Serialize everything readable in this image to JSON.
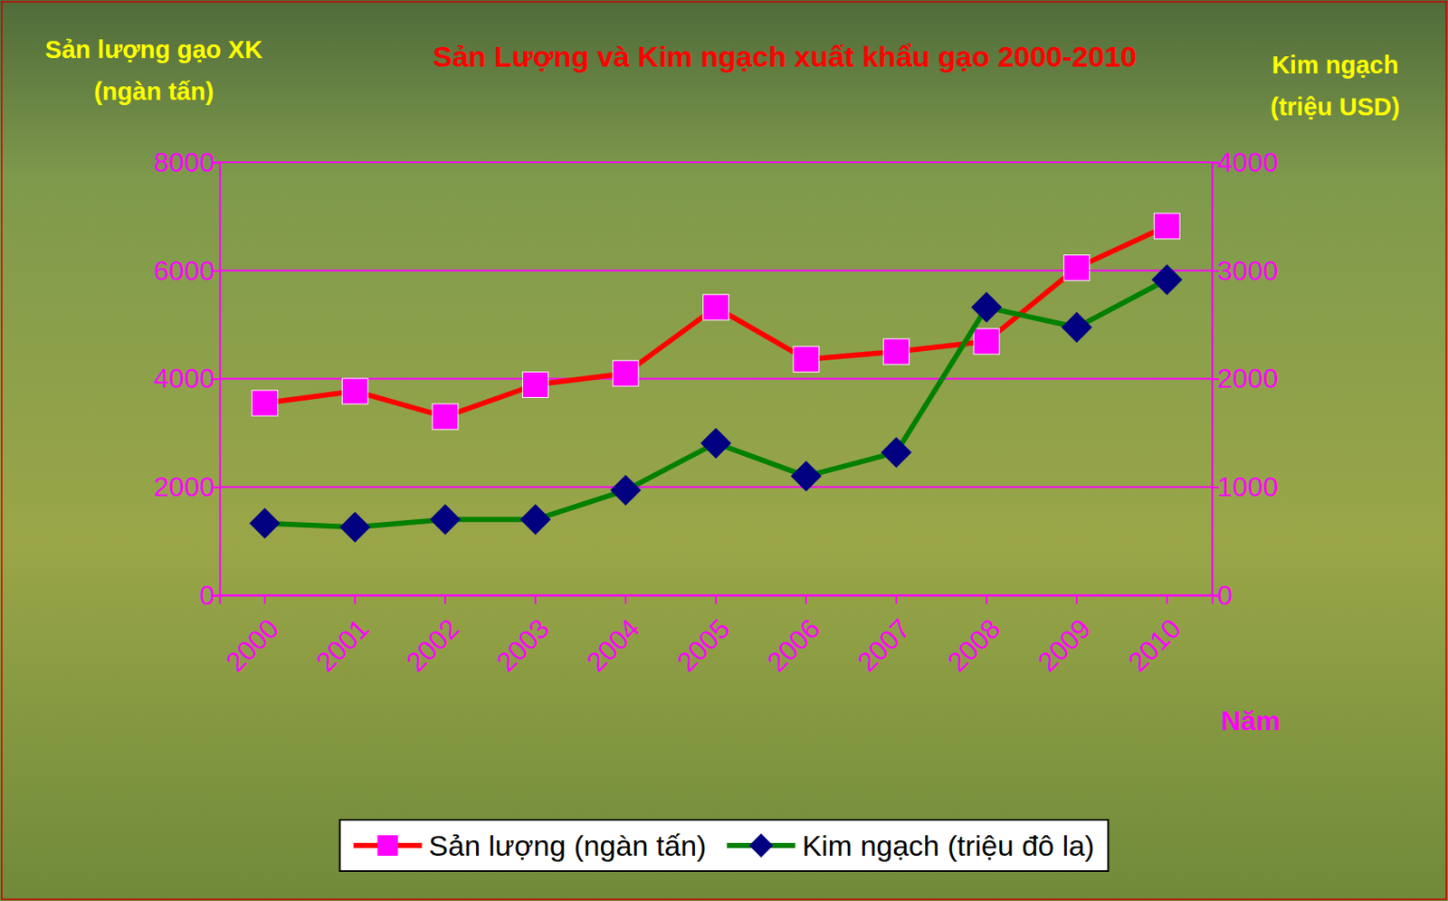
{
  "chart_data": {
    "type": "line",
    "title": "Sản Lượng và Kim ngạch xuất khẩu gạo 2000-2010",
    "y_label": "Sản lượng gạo XK (ngàn tấn)",
    "y2_label": "Kim ngạch (triệu USD)",
    "x_label": "Năm",
    "categories": [
      "2000",
      "2001",
      "2002",
      "2003",
      "2004",
      "2005",
      "2006",
      "2007",
      "2008",
      "2009",
      "2010"
    ],
    "series": [
      {
        "name": "Sản lượng (ngàn tấn)",
        "color": "#ff0000",
        "marker": "square",
        "axis": "y",
        "values": [
          3550,
          3770,
          3300,
          3890,
          4100,
          5320,
          4360,
          4500,
          4690,
          6050,
          6820
        ]
      },
      {
        "name": "Kim ngạch (triệu đô la)",
        "color": "#008000",
        "marker": "diamond",
        "axis": "y2",
        "values": [
          665,
          630,
          700,
          700,
          970,
          1405,
          1100,
          1320,
          2660,
          2475,
          2915
        ]
      }
    ],
    "ylim": [
      0,
      8000
    ],
    "yticks": [
      0,
      2000,
      4000,
      6000,
      8000
    ],
    "y2lim": [
      0,
      4000
    ],
    "y2ticks": [
      0,
      1000,
      2000,
      3000,
      4000
    ],
    "grid": true,
    "legend": "bottom"
  }
}
